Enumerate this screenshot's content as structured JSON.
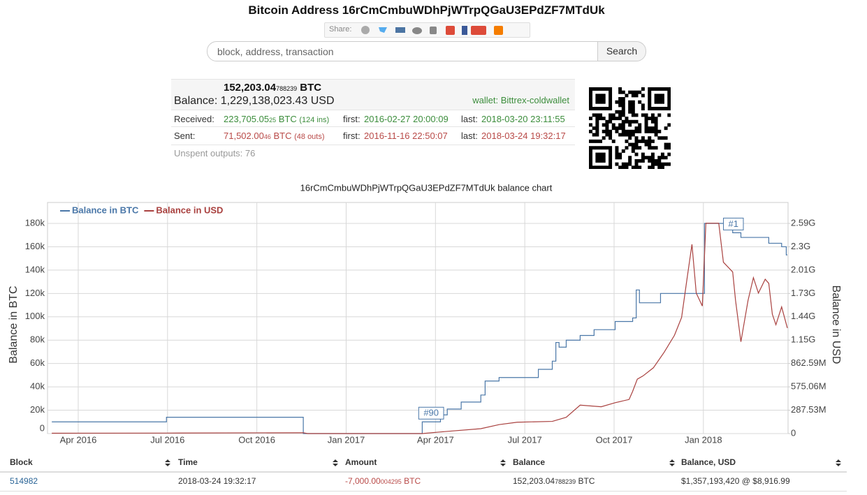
{
  "header": {
    "title": "Bitcoin Address 16rCmCmbuWDhPjWTrpQGaU3EPdZF7MTdUk",
    "share_label": "Share:"
  },
  "search": {
    "placeholder": "block, address, transaction",
    "button": "Search"
  },
  "summary": {
    "balance_btc": "152,203.04",
    "balance_btc_small": "788239",
    "balance_btc_unit": "BTC",
    "balance_label": "Balance:",
    "balance_usd": "1,229,138,023.43 USD",
    "wallet": "wallet: Bittrex-coldwallet",
    "received": {
      "label": "Received:",
      "amount": "223,705.05",
      "amount_small": "25",
      "unit": "BTC",
      "count": "(124 ins)",
      "first_label": "first:",
      "first": "2016-02-27 20:00:09",
      "last_label": "last:",
      "last": "2018-03-20 23:11:55"
    },
    "sent": {
      "label": "Sent:",
      "amount": "71,502.00",
      "amount_small": "46",
      "unit": "BTC",
      "count": "(48 outs)",
      "first_label": "first:",
      "first": "2016-11-16 22:50:07",
      "last_label": "last:",
      "last": "2018-03-24 19:32:17"
    },
    "unspent": "Unspent outputs: 76"
  },
  "chart_data": {
    "type": "line",
    "title": "16rCmCmbuWDhPjWTrpQGaU3EPdZF7MTdUk balance chart",
    "ylabel": "Balance in BTC",
    "y2label": "Balance in USD",
    "legend": "top-left",
    "grid": true,
    "xlim": [
      2016.164,
      2018.237
    ],
    "xticks": [
      {
        "value": 2016.25,
        "label": "Apr 2016"
      },
      {
        "value": 2016.5,
        "label": "Jul 2016"
      },
      {
        "value": 2016.75,
        "label": "Oct 2016"
      },
      {
        "value": 2017,
        "label": "Jan 2017"
      },
      {
        "value": 2017.25,
        "label": "Apr 2017"
      },
      {
        "value": 2017.5,
        "label": "Jul 2017"
      },
      {
        "value": 2017.75,
        "label": "Oct 2017"
      },
      {
        "value": 2018,
        "label": "Jan 2018"
      }
    ],
    "ylim": [
      0,
      180000
    ],
    "yticks": [
      0,
      {
        "value": 20000,
        "label": "20k"
      },
      {
        "value": 40000,
        "label": "40k"
      },
      {
        "value": 60000,
        "label": "60k"
      },
      {
        "value": 80000,
        "label": "80k"
      },
      {
        "value": 100000,
        "label": "100k"
      },
      {
        "value": 120000,
        "label": "120k"
      },
      {
        "value": 140000,
        "label": "140k"
      },
      {
        "value": 160000,
        "label": "160k"
      },
      {
        "value": 180000,
        "label": "180k"
      }
    ],
    "y2lim": [
      0,
      2587770000
    ],
    "y2ticks": [
      0,
      {
        "value": 287530000,
        "label": "287.53M"
      },
      {
        "value": 575060000,
        "label": "575.06M"
      },
      {
        "value": 862590000,
        "label": "862.59M"
      },
      {
        "value": 1150120000,
        "label": "1.15G"
      },
      {
        "value": 1437650000,
        "label": "1.44G"
      },
      {
        "value": 1725180000,
        "label": "1.73G"
      },
      {
        "value": 2012710000,
        "label": "2.01G"
      },
      {
        "value": 2300240000,
        "label": "2.3G"
      },
      {
        "value": 2587770000,
        "label": "2.59G"
      }
    ],
    "series": [
      {
        "name": "Balance in BTC",
        "color": "#4a77a8",
        "x": [
          2016.176,
          2016.497,
          2016.497,
          2016.88,
          2016.88,
          2017.213,
          2017.213,
          2017.264,
          2017.264,
          2017.283,
          2017.283,
          2017.322,
          2017.322,
          2017.377,
          2017.377,
          2017.389,
          2017.389,
          2017.428,
          2017.428,
          2017.538,
          2017.538,
          2017.577,
          2017.577,
          2017.587,
          2017.587,
          2017.596,
          2017.596,
          2017.616,
          2017.616,
          2017.655,
          2017.655,
          2017.694,
          2017.694,
          2017.753,
          2017.753,
          2017.802,
          2017.802,
          2017.812,
          2017.812,
          2017.821,
          2017.821,
          2017.88,
          2017.88,
          2018.003,
          2018.003,
          2018.082,
          2018.082,
          2018.105,
          2018.105,
          2018.183,
          2018.183,
          2018.219,
          2018.219,
          2018.232,
          2018.232,
          2018.235
        ],
        "values": [
          10000,
          10000,
          14000,
          14000,
          0,
          0,
          10000,
          10000,
          16000,
          16000,
          21000,
          21000,
          27000,
          27000,
          33000,
          33000,
          45000,
          45000,
          48000,
          48000,
          55000,
          55000,
          62000,
          62000,
          78000,
          78000,
          74000,
          74000,
          80000,
          80000,
          84000,
          84000,
          89000,
          89000,
          96000,
          96000,
          99000,
          99000,
          123000,
          123000,
          112000,
          112000,
          120000,
          120000,
          180000,
          180000,
          172000,
          172000,
          168000,
          168000,
          163000,
          163000,
          160000,
          160000,
          153000,
          153000
        ]
      },
      {
        "name": "Balance in USD",
        "color": "#a9413f",
        "axis": "y2",
        "x": [
          2016.176,
          2016.497,
          2016.88,
          2016.892,
          2017.213,
          2017.264,
          2017.377,
          2017.428,
          2017.479,
          2017.577,
          2017.616,
          2017.655,
          2017.714,
          2017.753,
          2017.792,
          2017.802,
          2017.815,
          2017.831,
          2017.86,
          2017.89,
          2017.919,
          2017.939,
          2017.954,
          2017.968,
          2017.98,
          2017.997,
          2018.007,
          2018.043,
          2018.056,
          2018.082,
          2018.09,
          2018.105,
          2018.125,
          2018.14,
          2018.154,
          2018.173,
          2018.183,
          2018.193,
          2018.203,
          2018.219,
          2018.235
        ],
        "values": [
          4000000,
          6000000,
          10000000,
          0,
          0,
          20000000,
          60000000,
          110000000,
          140000000,
          150000000,
          200000000,
          350000000,
          330000000,
          380000000,
          420000000,
          520000000,
          670000000,
          710000000,
          810000000,
          1000000000,
          1210000000,
          1430000000,
          1900000000,
          2330000000,
          1730000000,
          1570000000,
          2590000000,
          2590000000,
          2110000000,
          1990000000,
          1640000000,
          1130000000,
          1640000000,
          1920000000,
          1730000000,
          1900000000,
          1850000000,
          1470000000,
          1340000000,
          1560000000,
          1300000000
        ]
      }
    ],
    "annotations": [
      {
        "text": "#90",
        "x": 2017.238
      },
      {
        "text": "#1",
        "x": 2018.084
      }
    ]
  },
  "table": {
    "headers": [
      "Block",
      "Time",
      "Amount",
      "Balance",
      "Balance, USD"
    ],
    "rows": [
      {
        "block": "514982",
        "time": "2018-03-24 19:32:17",
        "amount": "-7,000.00",
        "amount_small": "004295",
        "amount_unit": "BTC",
        "balance": "152,203.04",
        "balance_small": "788239",
        "balance_unit": "BTC",
        "balance_usd": "$1,357,193,420 @ $8,916.99"
      }
    ]
  }
}
